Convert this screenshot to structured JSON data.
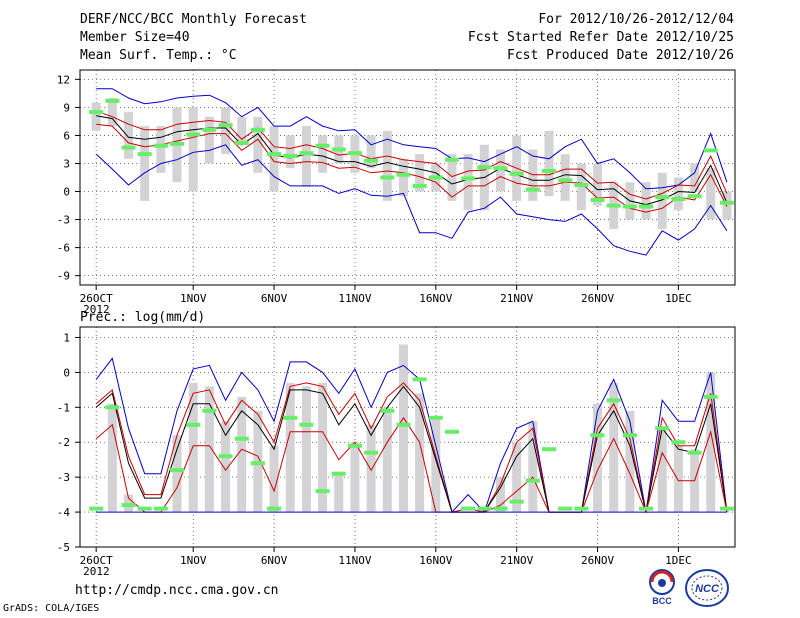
{
  "header": {
    "title": "DERF/NCC/BCC Monthly Forecast",
    "member_size": "Member Size=40",
    "variable": "Mean Surf. Temp.: °C",
    "period": "For 2012/10/26-2012/12/04",
    "fcst_started": "Fcst Started Refer Date 2012/10/25",
    "fcst_produced": "Fcst Produced Date 2012/10/26"
  },
  "footer": {
    "url": "http://cmdp.ncc.cma.gov.cn",
    "grads": "GrADS: COLA/IGES",
    "logo_bcc": "BCC",
    "logo_ncc": "NCC"
  },
  "colors": {
    "spread": "#0000cc",
    "quartile": "#cc0000",
    "median": "#000000",
    "bar": "#d3d3d6",
    "mark": "#66ee66"
  },
  "chart_data": [
    {
      "type": "line",
      "title": "Mean Surf. Temp.: °C",
      "ylim": [
        -10,
        13
      ],
      "yticks": [
        -9,
        -6,
        -3,
        0,
        3,
        6,
        9,
        12
      ],
      "grid": true,
      "x_tick_labels": [
        "26OCT",
        "1NOV",
        "6NOV",
        "11NOV",
        "16NOV",
        "21NOV",
        "26NOV",
        "1DEC"
      ],
      "x_year_label": "2012",
      "x": [
        1,
        2,
        3,
        4,
        5,
        6,
        7,
        8,
        9,
        10,
        11,
        12,
        13,
        14,
        15,
        16,
        17,
        18,
        19,
        20,
        21,
        22,
        23,
        24,
        25,
        26,
        27,
        28,
        29,
        30,
        31,
        32,
        33,
        34,
        35,
        36,
        37,
        38,
        39,
        40
      ],
      "series": [
        {
          "name": "max",
          "values": [
            11,
            11,
            10,
            9.4,
            9.6,
            10,
            10.2,
            10.3,
            9.5,
            8,
            9,
            7,
            7,
            8,
            7,
            6.5,
            6.6,
            5,
            5.6,
            5,
            4.8,
            4.6,
            3.5,
            3.6,
            3.2,
            4,
            4.8,
            3.8,
            3.5,
            4.8,
            5.6,
            3,
            3.5,
            2,
            0.3,
            0.4,
            0.7,
            2,
            6.2,
            1
          ]
        },
        {
          "name": "q_high",
          "values": [
            8.6,
            8,
            7.2,
            6.6,
            6.6,
            7.2,
            7.4,
            7.6,
            7.4,
            5.6,
            6.8,
            4.8,
            4.6,
            5,
            4.6,
            3.9,
            4.1,
            3.5,
            3.8,
            3.4,
            3.2,
            3,
            1.6,
            2.2,
            2.3,
            3.2,
            2.5,
            1.8,
            1.8,
            2.4,
            2.4,
            0.9,
            1,
            -0.3,
            -0.8,
            -0.2,
            0.7,
            0.6,
            3.8,
            -0.2
          ]
        },
        {
          "name": "median",
          "values": [
            8.1,
            7.8,
            5.8,
            5.6,
            5.8,
            6.4,
            6.6,
            6.8,
            6.8,
            5,
            6.2,
            3.9,
            3.6,
            4,
            3.8,
            3.2,
            3.2,
            2.7,
            3.1,
            2.7,
            2.4,
            2,
            0.8,
            1.3,
            1.5,
            2.5,
            1.8,
            1.2,
            1.2,
            1.8,
            1.7,
            0.2,
            0.3,
            -1,
            -1.4,
            -0.9,
            0,
            -0.1,
            2.8,
            -1.2
          ]
        },
        {
          "name": "q_low",
          "values": [
            7.2,
            7,
            5.2,
            4.8,
            5,
            5.4,
            5.8,
            6.2,
            6.2,
            4.4,
            5.6,
            3.2,
            3,
            3.2,
            3.1,
            2.5,
            2.6,
            2,
            2.2,
            2,
            1.6,
            1,
            -0.6,
            0.6,
            0.6,
            1.6,
            0.9,
            0.6,
            0.6,
            1,
            0.9,
            -0.7,
            -0.6,
            -1.8,
            -2.2,
            -1.8,
            -0.6,
            -0.9,
            1.8,
            -1.6
          ]
        },
        {
          "name": "min",
          "values": [
            4,
            2.4,
            0.7,
            2,
            3,
            3.4,
            4.2,
            4.4,
            5,
            2.8,
            3.4,
            1.6,
            0.6,
            0.6,
            0.6,
            -0.2,
            0.3,
            -0.4,
            -0.5,
            -0.2,
            -4.4,
            -4.4,
            -5,
            -2.2,
            -1.8,
            -0.6,
            -2.4,
            -2.7,
            -3,
            -3.2,
            -2.4,
            -4,
            -5.8,
            -6.4,
            -6.8,
            -4.2,
            -5.2,
            -4,
            -1.5,
            -4.2
          ]
        }
      ],
      "bars": {
        "name": "ensemble range",
        "low": [
          6.5,
          7,
          3.5,
          -1,
          2,
          1,
          0,
          3,
          4,
          5,
          2,
          0,
          2.5,
          0.5,
          2,
          3,
          2,
          2.5,
          -1,
          -0.5,
          0,
          0,
          -1,
          -2,
          -2,
          0,
          -1,
          -1,
          -0.5,
          -1,
          -2,
          -1.5,
          -4,
          -3,
          -3,
          -4,
          -2,
          0,
          -3,
          -3
        ],
        "high": [
          9.5,
          10,
          8.5,
          7,
          7,
          9,
          9,
          8,
          9,
          8,
          8,
          7,
          6,
          7,
          6,
          6,
          6,
          6,
          6.5,
          3.5,
          4,
          3,
          4,
          4,
          5,
          4.5,
          6,
          4.5,
          6.5,
          4,
          3,
          3,
          1,
          1,
          1,
          2,
          1.5,
          3,
          2.5,
          0
        ]
      },
      "markers": {
        "name": "observed",
        "values": [
          8.5,
          9.7,
          4.7,
          4,
          4.9,
          5.1,
          6.1,
          6.6,
          7.1,
          5.2,
          6.6,
          4,
          3.8,
          4.1,
          4.9,
          4.5,
          4.1,
          3.3,
          1.5,
          1.8,
          0.6,
          1.5,
          3.4,
          1.4,
          2.6,
          2.5,
          1.9,
          0.2,
          2.2,
          1.2,
          0.7,
          -0.9,
          -1.5,
          -1.6,
          -1.6,
          -0.6,
          -0.8,
          -0.5,
          4.4,
          -1.2
        ]
      }
    },
    {
      "type": "line",
      "title": "Prec.: log(mm/d)",
      "ylim": [
        -5,
        1.3
      ],
      "yticks": [
        -5,
        -4,
        -3,
        -2,
        -1,
        0,
        1
      ],
      "grid": true,
      "x_tick_labels": [
        "26OCT",
        "1NOV",
        "6NOV",
        "11NOV",
        "16NOV",
        "21NOV",
        "26NOV",
        "1DEC"
      ],
      "x_year_label": "2012",
      "x": [
        1,
        2,
        3,
        4,
        5,
        6,
        7,
        8,
        9,
        10,
        11,
        12,
        13,
        14,
        15,
        16,
        17,
        18,
        19,
        20,
        21,
        22,
        23,
        24,
        25,
        26,
        27,
        28,
        29,
        30,
        31,
        32,
        33,
        34,
        35,
        36,
        37,
        38,
        39,
        40
      ],
      "series": [
        {
          "name": "max",
          "values": [
            -0.2,
            0.4,
            -1.6,
            -2.9,
            -2.9,
            -1.1,
            0.1,
            0.2,
            -0.8,
            0,
            -0.5,
            -1.4,
            0.3,
            0.3,
            0,
            -0.6,
            0.1,
            -1,
            0,
            0.2,
            -0.2,
            -2.1,
            -4,
            -3.5,
            -4,
            -2.6,
            -1.6,
            -1.4,
            -4,
            -4,
            -4,
            -1.1,
            -0.2,
            -1.4,
            -4,
            -0.8,
            -1.4,
            -1.4,
            0,
            -4
          ]
        },
        {
          "name": "q_high",
          "values": [
            -0.9,
            -0.5,
            -2.4,
            -3.5,
            -3.5,
            -1.8,
            -0.6,
            -0.5,
            -1.5,
            -0.8,
            -1.2,
            -2,
            -0.4,
            -0.3,
            -0.4,
            -1.2,
            -0.6,
            -1.6,
            -0.7,
            -0.3,
            -0.8,
            -2.4,
            -4,
            -3.9,
            -4,
            -3.2,
            -2,
            -1.6,
            -4,
            -4,
            -4,
            -1.6,
            -0.9,
            -1.9,
            -4,
            -1.3,
            -2.1,
            -2.1,
            -0.6,
            -4
          ]
        },
        {
          "name": "median",
          "values": [
            -1,
            -0.6,
            -2.6,
            -3.6,
            -3.6,
            -2.2,
            -0.9,
            -0.9,
            -1.8,
            -1.1,
            -1.5,
            -2.2,
            -0.5,
            -0.5,
            -0.6,
            -1.5,
            -0.9,
            -1.8,
            -1,
            -0.4,
            -1,
            -2.5,
            -4,
            -4,
            -4,
            -3.3,
            -2.4,
            -1.9,
            -4,
            -4,
            -4,
            -1.8,
            -1.1,
            -2.1,
            -4,
            -1.6,
            -2.2,
            -2.3,
            -0.9,
            -4
          ]
        },
        {
          "name": "q_low",
          "values": [
            -1.9,
            -1.5,
            -3.6,
            -4,
            -4,
            -3.3,
            -2.1,
            -2.1,
            -2.8,
            -2.2,
            -2.4,
            -3.4,
            -1.7,
            -1.7,
            -1.7,
            -2.5,
            -2,
            -2.8,
            -2,
            -1.3,
            -2,
            -4,
            -4,
            -4,
            -4,
            -3.8,
            -3.4,
            -3,
            -4,
            -4,
            -4,
            -2.8,
            -1.9,
            -2.9,
            -4,
            -2.3,
            -3.1,
            -3.1,
            -1.7,
            -4
          ]
        },
        {
          "name": "min",
          "values": [
            -4,
            -4,
            -4,
            -4,
            -4,
            -4,
            -4,
            -4,
            -4,
            -4,
            -4,
            -4,
            -4,
            -4,
            -4,
            -4,
            -4,
            -4,
            -4,
            -4,
            -4,
            -4,
            -4,
            -4,
            -4,
            -4,
            -4,
            -4,
            -4,
            -4,
            -4,
            -4,
            -4,
            -4,
            -4,
            -4,
            -4,
            -4,
            -4,
            -4
          ]
        }
      ],
      "bars": {
        "name": "ensemble range",
        "low": [
          -4,
          -4,
          -4,
          -4,
          -4,
          -4,
          -4,
          -4,
          -4,
          -4,
          -4,
          -4,
          -4,
          -4,
          -4,
          -4,
          -4,
          -4,
          -4,
          -4,
          -4,
          -4,
          -4,
          -4,
          -4,
          -4,
          -4,
          -4,
          -4,
          -4,
          -4,
          -4,
          -4,
          -4,
          -4,
          -4,
          -4,
          -4,
          -4,
          -4
        ],
        "high": [
          -4,
          -0.9,
          -3.5,
          -4,
          -4,
          -1.8,
          -0.3,
          -0.4,
          -1.4,
          -0.7,
          -1.1,
          -2.1,
          -0.3,
          -0.4,
          -0.3,
          -2.9,
          -2,
          -1.5,
          -1,
          0.8,
          -0.6,
          -1.3,
          -4,
          -4,
          -4,
          -3,
          -2,
          -1.4,
          -4,
          -4,
          -4,
          -0.9,
          -0.3,
          -1.1,
          -4,
          -1.6,
          -2.1,
          -2.2,
          0,
          -4
        ]
      },
      "markers": {
        "name": "observed",
        "values": [
          -3.9,
          -1,
          -3.8,
          -3.9,
          -3.9,
          -2.8,
          -1.5,
          -1.1,
          -2.4,
          -1.9,
          -2.6,
          -3.9,
          -1.3,
          -1.5,
          -3.4,
          -2.9,
          -2.1,
          -2.3,
          -1.1,
          -1.5,
          -0.2,
          -1.3,
          -1.7,
          -3.9,
          -3.9,
          -3.9,
          -3.7,
          -3.1,
          -2.2,
          -3.9,
          -3.9,
          -1.8,
          -0.8,
          -1.8,
          -3.9,
          -1.6,
          -2,
          -2.3,
          -0.7,
          -3.9
        ]
      }
    }
  ]
}
